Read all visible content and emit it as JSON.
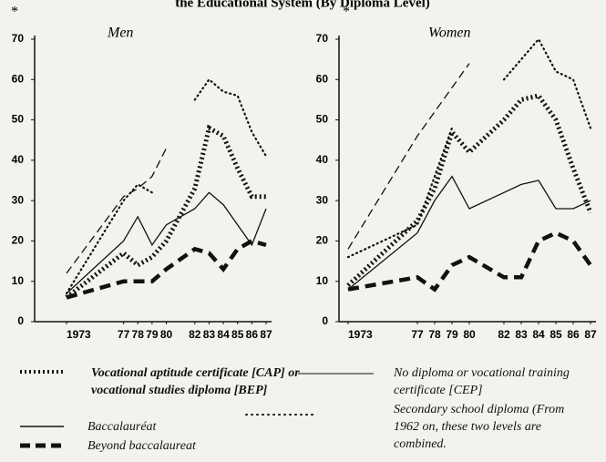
{
  "page_title": "the Educational System (By Diploma Level)",
  "chart_data": [
    {
      "type": "line",
      "title": "Men",
      "annotation": "*",
      "x": [
        1973,
        1977,
        1978,
        1979,
        1980,
        1982,
        1983,
        1984,
        1985,
        1986,
        1987
      ],
      "xlim": [
        1973,
        1987
      ],
      "xticks": [
        {
          "value": 1973,
          "label": "1973"
        },
        {
          "value": 1977,
          "label": "77"
        },
        {
          "value": 1978,
          "label": "78"
        },
        {
          "value": 1979,
          "label": "79"
        },
        {
          "value": 1980,
          "label": "80"
        },
        {
          "value": 1982,
          "label": "82"
        },
        {
          "value": 1983,
          "label": "83"
        },
        {
          "value": 1984,
          "label": "84"
        },
        {
          "value": 1985,
          "label": "85"
        },
        {
          "value": 1986,
          "label": "86"
        },
        {
          "value": 1987,
          "label": "87"
        }
      ],
      "ylim": [
        0,
        70
      ],
      "yticks": [
        0,
        10,
        20,
        30,
        40,
        50,
        60,
        70
      ],
      "series": [
        {
          "name": "Vocational aptitude certificate [CAP] or vocational studies diploma [BEP]",
          "color": "#111111",
          "style": "asterisk",
          "values": [
            6,
            17,
            14,
            16,
            20,
            33,
            48,
            46,
            38,
            31,
            31
          ]
        },
        {
          "name": "Baccalauréat",
          "color": "#111111",
          "style": "dashed",
          "values": [
            12,
            31,
            33,
            36,
            43,
            null,
            null,
            null,
            null,
            null,
            null
          ]
        },
        {
          "name": "Beyond baccalaureat",
          "color": "#111111",
          "style": "thick-dashed",
          "values": [
            6,
            10,
            10,
            10,
            13,
            18,
            17,
            13,
            18,
            20,
            19
          ]
        },
        {
          "name": "No diploma or vocational training certificate [CEP]",
          "color": "#111111",
          "style": "solid",
          "values": [
            7,
            20,
            26,
            19,
            24,
            28,
            32,
            29,
            24,
            19,
            28
          ]
        },
        {
          "name": "Secondary school diploma (From 1962 on, these two levels are combined.",
          "color": "#111111",
          "style": "dotted",
          "values": [
            7,
            30,
            34,
            32,
            null,
            55,
            60,
            57,
            56,
            47,
            41
          ]
        }
      ]
    },
    {
      "type": "line",
      "title": "Women",
      "annotation": "*",
      "x": [
        1973,
        1977,
        1978,
        1979,
        1980,
        1982,
        1983,
        1984,
        1985,
        1986,
        1987
      ],
      "xlim": [
        1973,
        1987
      ],
      "xticks": [
        {
          "value": 1973,
          "label": "1973"
        },
        {
          "value": 1977,
          "label": "77"
        },
        {
          "value": 1978,
          "label": "78"
        },
        {
          "value": 1979,
          "label": "79"
        },
        {
          "value": 1980,
          "label": "80"
        },
        {
          "value": 1982,
          "label": "82"
        },
        {
          "value": 1983,
          "label": "83"
        },
        {
          "value": 1984,
          "label": "84"
        },
        {
          "value": 1985,
          "label": "85"
        },
        {
          "value": 1986,
          "label": "86"
        },
        {
          "value": 1987,
          "label": "87"
        }
      ],
      "ylim": [
        0,
        70
      ],
      "yticks": [
        0,
        10,
        20,
        30,
        40,
        50,
        60,
        70
      ],
      "series": [
        {
          "color": "#111111",
          "style": "asterisk",
          "values": [
            9,
            25,
            33,
            47,
            42,
            50,
            55,
            56,
            50,
            38,
            27
          ]
        },
        {
          "color": "#111111",
          "style": "dashed",
          "values": [
            18,
            46,
            52,
            58,
            64,
            null,
            null,
            null,
            null,
            null,
            null
          ]
        },
        {
          "color": "#111111",
          "style": "thick-dashed",
          "values": [
            8,
            11,
            8,
            14,
            16,
            11,
            11,
            20,
            22,
            20,
            14
          ]
        },
        {
          "color": "#111111",
          "style": "solid",
          "values": [
            8,
            22,
            30,
            36,
            28,
            32,
            34,
            35,
            28,
            28,
            30
          ]
        },
        {
          "color": "#111111",
          "style": "dotted",
          "values": [
            16,
            24,
            36,
            48,
            null,
            60,
            65,
            70,
            62,
            60,
            48
          ]
        }
      ]
    }
  ]
}
